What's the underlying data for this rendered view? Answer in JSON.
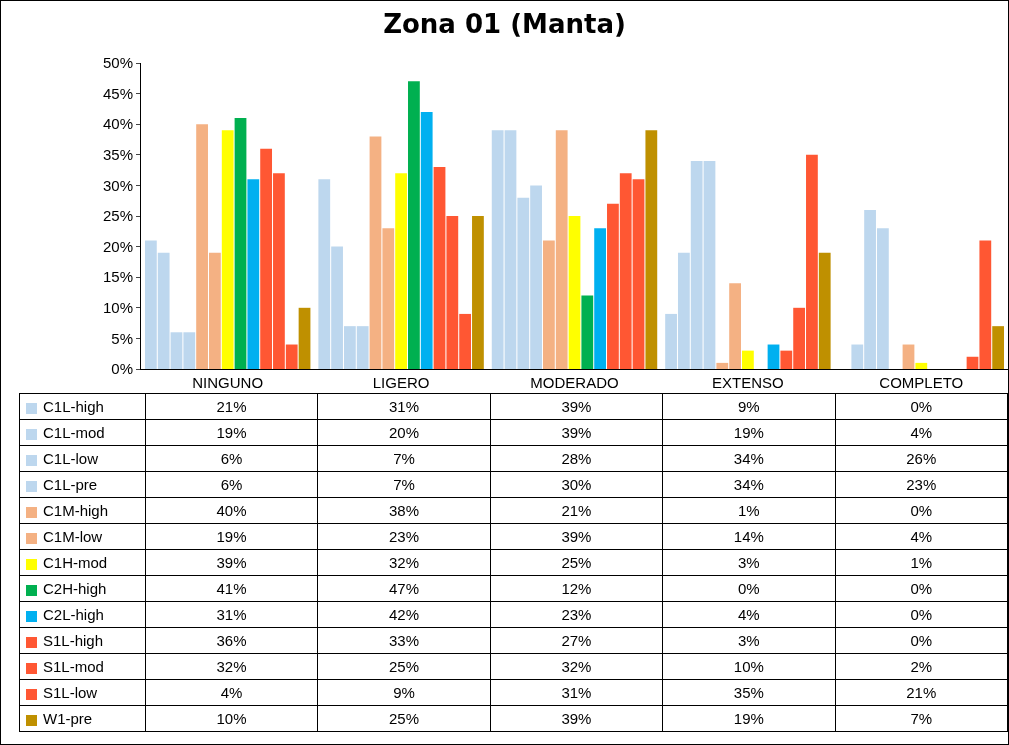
{
  "chart_data": {
    "type": "bar",
    "title": "Zona 01 (Manta)",
    "categories": [
      "NINGUNO",
      "LIGERO",
      "MODERADO",
      "EXTENSO",
      "COMPLETO"
    ],
    "ylim": [
      0,
      50
    ],
    "yticks": [
      {
        "value": 0,
        "label": "0%"
      },
      {
        "value": 5,
        "label": "5%"
      },
      {
        "value": 10,
        "label": "10%"
      },
      {
        "value": 15,
        "label": "15%"
      },
      {
        "value": 20,
        "label": "20%"
      },
      {
        "value": 25,
        "label": "25%"
      },
      {
        "value": 30,
        "label": "30%"
      },
      {
        "value": 35,
        "label": "35%"
      },
      {
        "value": 40,
        "label": "40%"
      },
      {
        "value": 45,
        "label": "45%"
      },
      {
        "value": 50,
        "label": "50%"
      }
    ],
    "grid": false,
    "legend": "bottom",
    "series": [
      {
        "name": "C1L-high",
        "color": "#bdd7ee",
        "values": [
          21,
          31,
          39,
          9,
          0
        ],
        "value_labels": [
          "21%",
          "31%",
          "39%",
          "9%",
          "0%"
        ]
      },
      {
        "name": "C1L-mod",
        "color": "#bdd7ee",
        "values": [
          19,
          20,
          39,
          19,
          4
        ],
        "value_labels": [
          "19%",
          "20%",
          "39%",
          "19%",
          "4%"
        ]
      },
      {
        "name": "C1L-low",
        "color": "#bdd7ee",
        "values": [
          6,
          7,
          28,
          34,
          26
        ],
        "value_labels": [
          "6%",
          "7%",
          "28%",
          "34%",
          "26%"
        ]
      },
      {
        "name": "C1L-pre",
        "color": "#bdd7ee",
        "values": [
          6,
          7,
          30,
          34,
          23
        ],
        "value_labels": [
          "6%",
          "7%",
          "30%",
          "34%",
          "23%"
        ]
      },
      {
        "name": "C1M-high",
        "color": "#f4b183",
        "values": [
          40,
          38,
          21,
          1,
          0
        ],
        "value_labels": [
          "40%",
          "38%",
          "21%",
          "1%",
          "0%"
        ]
      },
      {
        "name": "C1M-low",
        "color": "#f4b183",
        "values": [
          19,
          23,
          39,
          14,
          4
        ],
        "value_labels": [
          "19%",
          "23%",
          "39%",
          "14%",
          "4%"
        ]
      },
      {
        "name": "C1H-mod",
        "color": "#ffff00",
        "values": [
          39,
          32,
          25,
          3,
          1
        ],
        "value_labels": [
          "39%",
          "32%",
          "25%",
          "3%",
          "1%"
        ]
      },
      {
        "name": "C2H-high",
        "color": "#00b050",
        "values": [
          41,
          47,
          12,
          0,
          0
        ],
        "value_labels": [
          "41%",
          "47%",
          "12%",
          "0%",
          "0%"
        ]
      },
      {
        "name": "C2L-high",
        "color": "#00b0f0",
        "values": [
          31,
          42,
          23,
          4,
          0
        ],
        "value_labels": [
          "31%",
          "42%",
          "23%",
          "4%",
          "0%"
        ]
      },
      {
        "name": "S1L-high",
        "color": "#ff5733",
        "values": [
          36,
          33,
          27,
          3,
          0
        ],
        "value_labels": [
          "36%",
          "33%",
          "27%",
          "3%",
          "0%"
        ]
      },
      {
        "name": "S1L-mod",
        "color": "#ff5733",
        "values": [
          32,
          25,
          32,
          10,
          2
        ],
        "value_labels": [
          "32%",
          "25%",
          "32%",
          "10%",
          "2%"
        ]
      },
      {
        "name": "S1L-low",
        "color": "#ff5733",
        "values": [
          4,
          9,
          31,
          35,
          21
        ],
        "value_labels": [
          "4%",
          "9%",
          "31%",
          "35%",
          "21%"
        ]
      },
      {
        "name": "W1-pre",
        "color": "#bf9000",
        "values": [
          10,
          25,
          39,
          19,
          7
        ],
        "value_labels": [
          "10%",
          "25%",
          "39%",
          "19%",
          "7%"
        ]
      }
    ]
  }
}
